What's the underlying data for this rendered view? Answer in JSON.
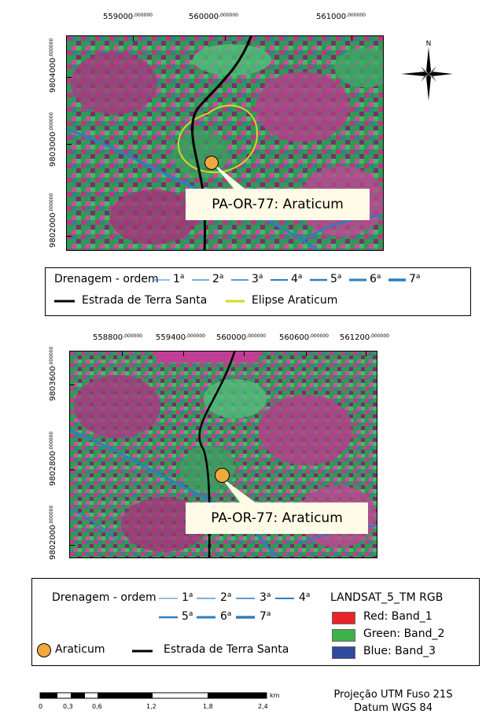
{
  "map1": {
    "x_ticks": [
      "559000",
      "560000",
      "561000"
    ],
    "y_ticks": [
      "9804000",
      "9803000",
      "9802000"
    ],
    "coord_decimal": ",000000",
    "north_label": "N",
    "site_label": "PA-OR-77: Araticum"
  },
  "legend1": {
    "drainage_title": "Drenagem - ordem",
    "orders": [
      "1",
      "2",
      "3",
      "4",
      "5",
      "6",
      "7"
    ],
    "order_suffix": "a",
    "road_label": "Estrada de Terra Santa",
    "ellipse_label": "Elipse Araticum"
  },
  "map2": {
    "x_ticks": [
      "558800",
      "559400",
      "560000",
      "560600",
      "561200"
    ],
    "y_ticks": [
      "9803600",
      "9802800",
      "9802000"
    ],
    "coord_decimal": ",000000",
    "site_label": "PA-OR-77: Araticum"
  },
  "legend2": {
    "drainage_title": "Drenagem - ordem",
    "orders": [
      "1",
      "2",
      "3",
      "4",
      "5",
      "6",
      "7"
    ],
    "order_suffix": "a",
    "site_label": "Araticum",
    "road_label": "Estrada de Terra Santa",
    "rgb_title": "LANDSAT_5_TM RGB",
    "bands": [
      {
        "label": "Red: Band_1",
        "color": "#e8242a"
      },
      {
        "label": "Green: Band_2",
        "color": "#3db34a"
      },
      {
        "label": "Blue: Band_3",
        "color": "#2f4a9e"
      }
    ]
  },
  "scalebar": {
    "labels": [
      "0",
      "0,3",
      "0,6",
      "1,2",
      "1,8",
      "2,4"
    ],
    "unit": "km"
  },
  "projection": {
    "line1": "Projeção UTM Fuso 21S",
    "line2": "Datum WGS 84"
  },
  "colors": {
    "road": "#000000",
    "ellipse": "#d6d62a",
    "drainage": "#2c7fc0",
    "site_marker": "#f2a93b"
  }
}
